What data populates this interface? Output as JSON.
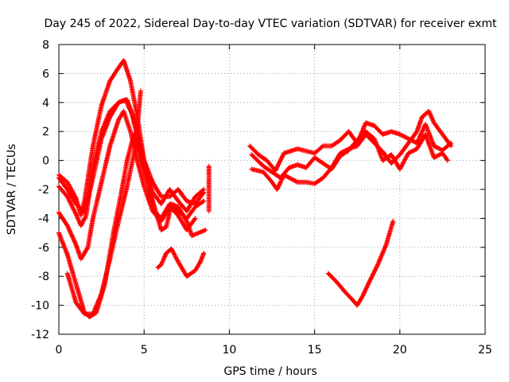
{
  "chart_data": {
    "type": "scatter",
    "title": "Day 245 of 2022, Sidereal Day-to-day VTEC variation (SDTVAR) for receiver exmt",
    "xlabel": "GPS time / hours",
    "ylabel": "SDTVAR / TECUs",
    "xlim": [
      0,
      25
    ],
    "ylim": [
      -12,
      8
    ],
    "xticks": [
      "0",
      "5",
      "10",
      "15",
      "20",
      "25"
    ],
    "yticks": [
      "-12",
      "-10",
      "-8",
      "-6",
      "-4",
      "-2",
      "0",
      "2",
      "4",
      "6",
      "8"
    ],
    "grid": true,
    "marker": "+",
    "color": "#ff0000",
    "series": [
      {
        "name": "track-1",
        "points": [
          [
            0,
            -1.0
          ],
          [
            0.5,
            -1.5
          ],
          [
            1.0,
            -2.6
          ],
          [
            1.3,
            -3.8
          ],
          [
            1.5,
            -2.8
          ],
          [
            2.0,
            1.0
          ],
          [
            2.5,
            3.8
          ],
          [
            3.0,
            5.5
          ],
          [
            3.5,
            6.4
          ],
          [
            3.8,
            6.9
          ],
          [
            4.2,
            5.5
          ],
          [
            4.6,
            3.0
          ],
          [
            5.0,
            0.0
          ],
          [
            5.5,
            -2.2
          ],
          [
            6.0,
            -3.0
          ],
          [
            6.5,
            -2.0
          ],
          [
            7.0,
            -2.8
          ],
          [
            7.5,
            -3.5
          ],
          [
            8.0,
            -2.5
          ],
          [
            8.5,
            -2.0
          ]
        ]
      },
      {
        "name": "track-2",
        "points": [
          [
            0,
            -1.8
          ],
          [
            0.5,
            -2.5
          ],
          [
            1.0,
            -3.7
          ],
          [
            1.3,
            -4.5
          ],
          [
            1.6,
            -3.8
          ],
          [
            2.0,
            -0.5
          ],
          [
            2.5,
            2.0
          ],
          [
            3.0,
            3.4
          ],
          [
            3.5,
            4.0
          ],
          [
            3.9,
            4.2
          ],
          [
            4.3,
            3.2
          ],
          [
            4.8,
            0.5
          ],
          [
            5.2,
            -1.5
          ],
          [
            5.6,
            -3.5
          ],
          [
            6.0,
            -4.0
          ],
          [
            6.5,
            -3.0
          ],
          [
            7.0,
            -3.5
          ],
          [
            7.5,
            -4.0
          ],
          [
            8.0,
            -3.2
          ],
          [
            8.5,
            -2.8
          ]
        ]
      },
      {
        "name": "track-3",
        "points": [
          [
            0,
            -1.2
          ],
          [
            0.5,
            -2.0
          ],
          [
            1.0,
            -3.0
          ],
          [
            1.5,
            -3.6
          ],
          [
            2.0,
            -1.2
          ],
          [
            2.5,
            1.5
          ],
          [
            3.0,
            3.0
          ],
          [
            3.5,
            4.0
          ],
          [
            4.0,
            4.2
          ],
          [
            4.5,
            2.5
          ],
          [
            5.0,
            0.0
          ],
          [
            5.5,
            -1.5
          ],
          [
            6.0,
            -2.5
          ],
          [
            6.5,
            -2.5
          ],
          [
            7.0,
            -2.0
          ],
          [
            7.5,
            -2.8
          ],
          [
            8.0,
            -3.0
          ],
          [
            8.5,
            -2.2
          ]
        ]
      },
      {
        "name": "track-4",
        "points": [
          [
            0,
            -3.6
          ],
          [
            0.5,
            -4.5
          ],
          [
            1.0,
            -5.8
          ],
          [
            1.3,
            -6.8
          ],
          [
            1.7,
            -6.0
          ],
          [
            2.0,
            -4.0
          ],
          [
            2.5,
            -1.5
          ],
          [
            3.0,
            1.0
          ],
          [
            3.5,
            2.8
          ],
          [
            3.8,
            3.4
          ],
          [
            4.2,
            2.0
          ],
          [
            4.6,
            0.0
          ],
          [
            5.0,
            -1.8
          ],
          [
            5.5,
            -3.5
          ],
          [
            6.0,
            -4.2
          ],
          [
            6.5,
            -3.2
          ],
          [
            7.0,
            -3.8
          ],
          [
            7.5,
            -4.8
          ],
          [
            8.0,
            -4.0
          ]
        ]
      },
      {
        "name": "track-5",
        "points": [
          [
            0,
            -5.0
          ],
          [
            0.5,
            -6.5
          ],
          [
            1.0,
            -8.5
          ],
          [
            1.5,
            -10.5
          ],
          [
            1.8,
            -10.8
          ],
          [
            2.2,
            -10.5
          ],
          [
            2.7,
            -8.5
          ],
          [
            3.2,
            -5.0
          ],
          [
            3.7,
            -2.0
          ],
          [
            4.0,
            0.0
          ],
          [
            4.4,
            1.8
          ],
          [
            4.8,
            0.2
          ],
          [
            5.2,
            -1.5
          ],
          [
            5.6,
            -3.2
          ],
          [
            6.0,
            -4.8
          ],
          [
            6.3,
            -4.6
          ],
          [
            6.6,
            -3.0
          ],
          [
            7.0,
            -3.2
          ],
          [
            7.5,
            -4.2
          ],
          [
            7.8,
            -5.2
          ],
          [
            8.2,
            -5.0
          ],
          [
            8.6,
            -4.8
          ]
        ]
      },
      {
        "name": "track-6",
        "points": [
          [
            0.5,
            -7.8
          ],
          [
            1.0,
            -9.8
          ],
          [
            1.5,
            -10.6
          ],
          [
            2.0,
            -10.6
          ],
          [
            2.5,
            -9.2
          ],
          [
            3.0,
            -6.8
          ],
          [
            3.5,
            -4.2
          ],
          [
            4.0,
            -1.8
          ],
          [
            4.5,
            1.0
          ],
          [
            4.8,
            4.8
          ]
        ]
      },
      {
        "name": "track-7",
        "points": [
          [
            5.8,
            -7.4
          ],
          [
            6.0,
            -7.2
          ],
          [
            6.3,
            -6.4
          ],
          [
            6.6,
            -6.1
          ],
          [
            7.0,
            -7.0
          ],
          [
            7.5,
            -8.0
          ],
          [
            8.0,
            -7.6
          ],
          [
            8.3,
            -7.0
          ],
          [
            8.5,
            -6.4
          ]
        ]
      },
      {
        "name": "track-8",
        "points": [
          [
            8.8,
            -0.4
          ],
          [
            8.8,
            -1.5
          ],
          [
            8.8,
            -2.1
          ],
          [
            8.8,
            -3.5
          ]
        ]
      },
      {
        "name": "track-9",
        "points": [
          [
            11.2,
            1.0
          ],
          [
            11.7,
            0.4
          ],
          [
            12.2,
            0.0
          ],
          [
            12.7,
            -0.7
          ],
          [
            13.2,
            0.5
          ],
          [
            14.0,
            0.8
          ],
          [
            15.0,
            0.5
          ],
          [
            15.5,
            1.0
          ],
          [
            16.0,
            1.0
          ],
          [
            16.5,
            1.4
          ],
          [
            17.0,
            2.0
          ],
          [
            17.5,
            1.2
          ],
          [
            18.0,
            2.6
          ],
          [
            18.5,
            2.4
          ],
          [
            19.0,
            1.8
          ],
          [
            19.5,
            2.0
          ],
          [
            20.0,
            1.8
          ],
          [
            20.5,
            1.5
          ],
          [
            21.0,
            1.2
          ],
          [
            21.5,
            2.5
          ],
          [
            22.0,
            1.0
          ],
          [
            22.5,
            0.7
          ],
          [
            23.0,
            1.2
          ]
        ]
      },
      {
        "name": "track-10",
        "points": [
          [
            11.3,
            0.4
          ],
          [
            12.0,
            -0.4
          ],
          [
            12.5,
            -0.8
          ],
          [
            13.0,
            -1.2
          ],
          [
            13.5,
            -0.5
          ],
          [
            14.0,
            -0.3
          ],
          [
            14.5,
            -0.5
          ],
          [
            15.0,
            0.2
          ],
          [
            16.0,
            -0.6
          ],
          [
            16.5,
            0.3
          ],
          [
            17.0,
            0.7
          ],
          [
            17.5,
            1.4
          ],
          [
            18.0,
            2.0
          ],
          [
            18.5,
            1.5
          ],
          [
            19.0,
            0.0
          ],
          [
            19.5,
            0.4
          ],
          [
            20.0,
            -0.6
          ],
          [
            20.5,
            0.5
          ],
          [
            21.0,
            0.8
          ],
          [
            21.5,
            1.8
          ],
          [
            22.0,
            0.2
          ],
          [
            22.5,
            0.5
          ],
          [
            22.8,
            0.0
          ]
        ]
      },
      {
        "name": "track-11",
        "points": [
          [
            11.3,
            -0.6
          ],
          [
            12.0,
            -0.8
          ],
          [
            12.5,
            -1.5
          ],
          [
            12.8,
            -2.0
          ],
          [
            13.2,
            -1.0
          ],
          [
            14.0,
            -1.5
          ],
          [
            14.5,
            -1.5
          ],
          [
            15.0,
            -1.6
          ],
          [
            15.5,
            -1.2
          ],
          [
            16.0,
            -0.5
          ],
          [
            16.5,
            0.5
          ],
          [
            17.0,
            0.8
          ],
          [
            17.5,
            1.0
          ],
          [
            18.0,
            1.8
          ],
          [
            18.5,
            1.2
          ],
          [
            19.0,
            0.6
          ],
          [
            19.5,
            -0.2
          ],
          [
            20.0,
            0.4
          ],
          [
            20.5,
            1.2
          ],
          [
            21.0,
            2.0
          ],
          [
            21.3,
            3.0
          ],
          [
            21.7,
            3.4
          ],
          [
            22.0,
            2.6
          ],
          [
            22.5,
            1.8
          ],
          [
            23.0,
            1.0
          ]
        ]
      },
      {
        "name": "track-12",
        "points": [
          [
            15.8,
            -7.8
          ],
          [
            16.3,
            -8.4
          ],
          [
            16.8,
            -9.1
          ],
          [
            17.2,
            -9.6
          ],
          [
            17.5,
            -10.0
          ],
          [
            17.8,
            -9.4
          ],
          [
            18.2,
            -8.4
          ],
          [
            18.7,
            -7.2
          ],
          [
            19.2,
            -5.8
          ],
          [
            19.6,
            -4.2
          ]
        ]
      }
    ]
  }
}
